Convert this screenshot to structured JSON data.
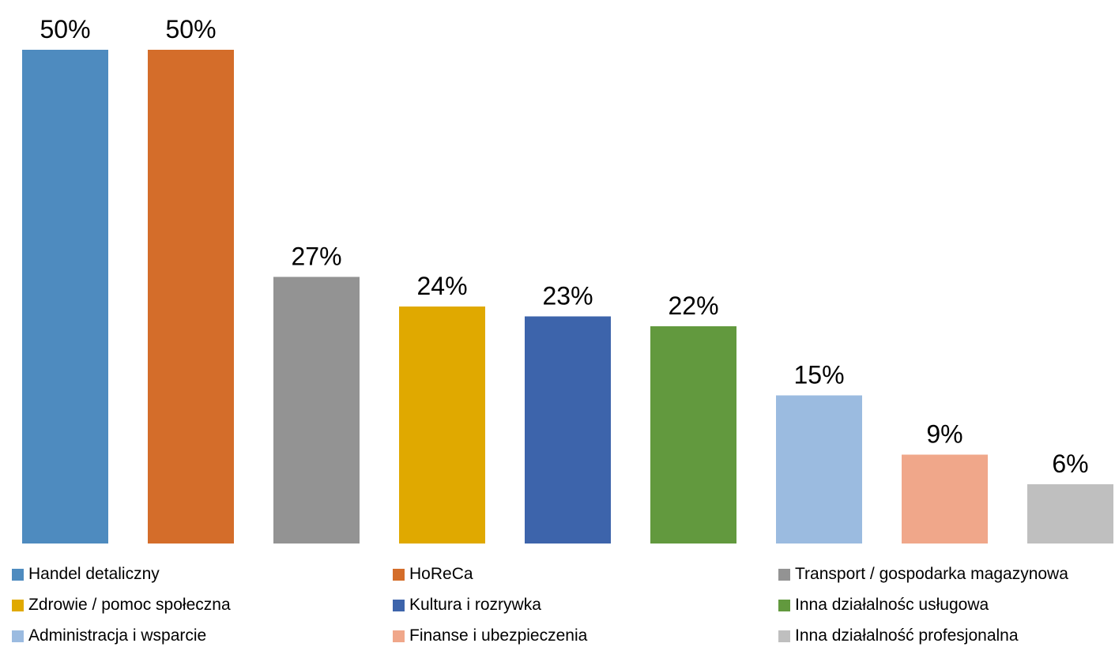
{
  "chart_data": {
    "type": "bar",
    "title": "",
    "xlabel": "",
    "ylabel": "",
    "ylim": [
      0,
      50
    ],
    "grid": false,
    "legend_position": "bottom",
    "categories": [
      "Handel detaliczny",
      "HoReCa",
      "Transport / gospodarka magazynowa",
      "Zdrowie / pomoc społeczna",
      "Kultura i rozrywka",
      "Inna działalnośc usługowa",
      "Administracja i wsparcie",
      "Finanse i ubezpieczenia",
      "Inna działalność profesjonalna"
    ],
    "values": [
      50,
      50,
      27,
      24,
      23,
      22,
      15,
      9,
      6
    ],
    "data_labels": [
      "50%",
      "50%",
      "27%",
      "24%",
      "23%",
      "22%",
      "15%",
      "9%",
      "6%"
    ],
    "colors": [
      "#4e8bbf",
      "#d46d2a",
      "#939393",
      "#e0a900",
      "#3d64ab",
      "#62993e",
      "#9bbbe0",
      "#f0a78a",
      "#bfbfbf"
    ]
  }
}
